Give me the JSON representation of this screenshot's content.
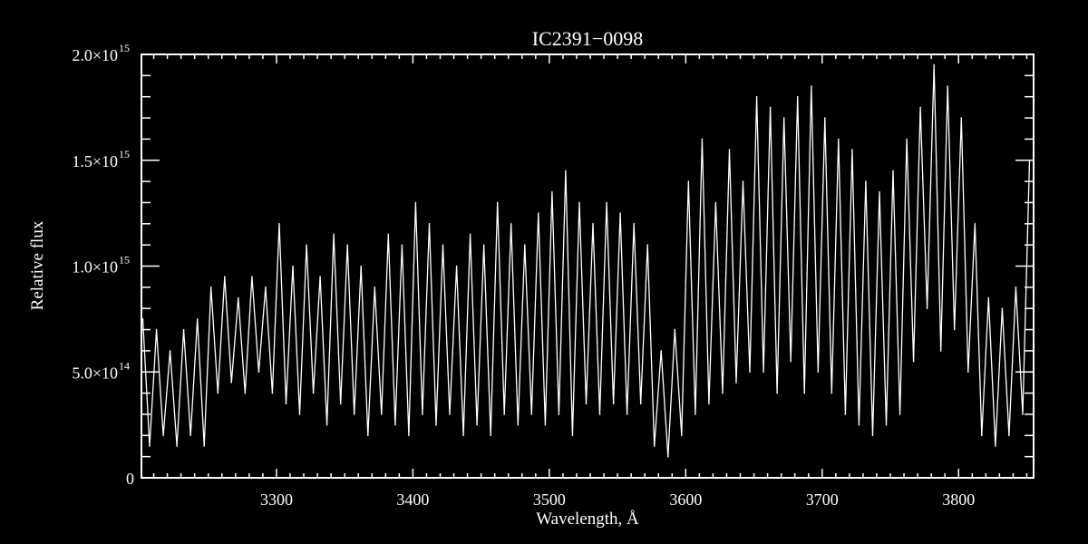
{
  "chart_data": {
    "type": "line",
    "title": "IC2391−0098",
    "xlabel": "Wavelength, Å",
    "ylabel": "Relative flux",
    "xlim": [
      3201,
      3855
    ],
    "ylim": [
      0,
      2000000000000000.0
    ],
    "x_ticks": [
      3300,
      3400,
      3500,
      3600,
      3700,
      3800
    ],
    "x_tick_labels": [
      "3300",
      "3400",
      "3500",
      "3600",
      "3700",
      "3800"
    ],
    "y_ticks": [
      0,
      500000000000000.0,
      1000000000000000.0,
      1500000000000000.0,
      2000000000000000.0
    ],
    "y_tick_labels": [
      {
        "mantissa": "0",
        "exp": ""
      },
      {
        "mantissa": "5.0×10",
        "exp": "14"
      },
      {
        "mantissa": "1.0×10",
        "exp": "15"
      },
      {
        "mantissa": "1.5×10",
        "exp": "15"
      },
      {
        "mantissa": "2.0×10",
        "exp": "15"
      }
    ],
    "grid": false,
    "colors": {
      "background": "#000000",
      "line": "#ffffff",
      "axes": "#ffffff"
    },
    "x": [
      3202,
      3207,
      3212,
      3217,
      3222,
      3227,
      3232,
      3237,
      3242,
      3247,
      3252,
      3257,
      3262,
      3267,
      3272,
      3277,
      3282,
      3287,
      3292,
      3297,
      3302,
      3307,
      3312,
      3317,
      3322,
      3327,
      3332,
      3337,
      3342,
      3347,
      3352,
      3357,
      3362,
      3367,
      3372,
      3377,
      3382,
      3387,
      3392,
      3397,
      3402,
      3407,
      3412,
      3417,
      3422,
      3427,
      3432,
      3437,
      3442,
      3447,
      3452,
      3457,
      3462,
      3467,
      3472,
      3477,
      3482,
      3487,
      3492,
      3497,
      3502,
      3507,
      3512,
      3517,
      3522,
      3527,
      3532,
      3537,
      3542,
      3547,
      3552,
      3557,
      3562,
      3567,
      3572,
      3577,
      3582,
      3587,
      3592,
      3597,
      3602,
      3607,
      3612,
      3617,
      3622,
      3627,
      3632,
      3637,
      3642,
      3647,
      3652,
      3657,
      3662,
      3667,
      3672,
      3677,
      3682,
      3687,
      3692,
      3697,
      3702,
      3707,
      3712,
      3717,
      3722,
      3727,
      3732,
      3737,
      3742,
      3747,
      3752,
      3757,
      3762,
      3767,
      3772,
      3777,
      3782,
      3787,
      3792,
      3797,
      3802,
      3807,
      3812,
      3817,
      3822,
      3827,
      3832,
      3837,
      3842,
      3847,
      3852
    ],
    "y": [
      750000000000000.0,
      150000000000000.0,
      700000000000000.0,
      200000000000000.0,
      600000000000000.0,
      150000000000000.0,
      700000000000000.0,
      200000000000000.0,
      750000000000000.0,
      150000000000000.0,
      900000000000000.0,
      400000000000000.0,
      950000000000000.0,
      450000000000000.0,
      850000000000000.0,
      400000000000000.0,
      950000000000000.0,
      500000000000000.0,
      900000000000000.0,
      400000000000000.0,
      1200000000000000.0,
      350000000000000.0,
      1000000000000000.0,
      300000000000000.0,
      1100000000000000.0,
      400000000000000.0,
      950000000000000.0,
      250000000000000.0,
      1150000000000000.0,
      350000000000000.0,
      1100000000000000.0,
      300000000000000.0,
      1000000000000000.0,
      200000000000000.0,
      900000000000000.0,
      300000000000000.0,
      1150000000000000.0,
      250000000000000.0,
      1100000000000000.0,
      200000000000000.0,
      1300000000000000.0,
      300000000000000.0,
      1200000000000000.0,
      250000000000000.0,
      1100000000000000.0,
      300000000000000.0,
      1000000000000000.0,
      200000000000000.0,
      1150000000000000.0,
      250000000000000.0,
      1100000000000000.0,
      200000000000000.0,
      1300000000000000.0,
      300000000000000.0,
      1200000000000000.0,
      250000000000000.0,
      1100000000000000.0,
      300000000000000.0,
      1250000000000000.0,
      250000000000000.0,
      1350000000000000.0,
      300000000000000.0,
      1450000000000000.0,
      200000000000000.0,
      1300000000000000.0,
      350000000000000.0,
      1200000000000000.0,
      300000000000000.0,
      1300000000000000.0,
      350000000000000.0,
      1250000000000000.0,
      300000000000000.0,
      1200000000000000.0,
      350000000000000.0,
      1100000000000000.0,
      150000000000000.0,
      600000000000000.0,
      100000000000000.0,
      700000000000000.0,
      200000000000000.0,
      1400000000000000.0,
      300000000000000.0,
      1600000000000000.0,
      350000000000000.0,
      1300000000000000.0,
      400000000000000.0,
      1550000000000000.0,
      450000000000000.0,
      1400000000000000.0,
      500000000000000.0,
      1800000000000000.0,
      500000000000000.0,
      1750000000000000.0,
      400000000000000.0,
      1700000000000000.0,
      550000000000000.0,
      1800000000000000.0,
      400000000000000.0,
      1850000000000000.0,
      500000000000000.0,
      1700000000000000.0,
      400000000000000.0,
      1600000000000000.0,
      300000000000000.0,
      1550000000000000.0,
      250000000000000.0,
      1400000000000000.0,
      200000000000000.0,
      1350000000000000.0,
      250000000000000.0,
      1450000000000000.0,
      300000000000000.0,
      1600000000000000.0,
      550000000000000.0,
      1750000000000000.0,
      800000000000000.0,
      1950000000000000.0,
      600000000000000.0,
      1850000000000000.0,
      700000000000000.0,
      1700000000000000.0,
      500000000000000.0,
      1200000000000000.0,
      200000000000000.0,
      850000000000000.0,
      150000000000000.0,
      800000000000000.0,
      200000000000000.0,
      900000000000000.0,
      300000000000000.0,
      1500000000000000.0
    ]
  }
}
